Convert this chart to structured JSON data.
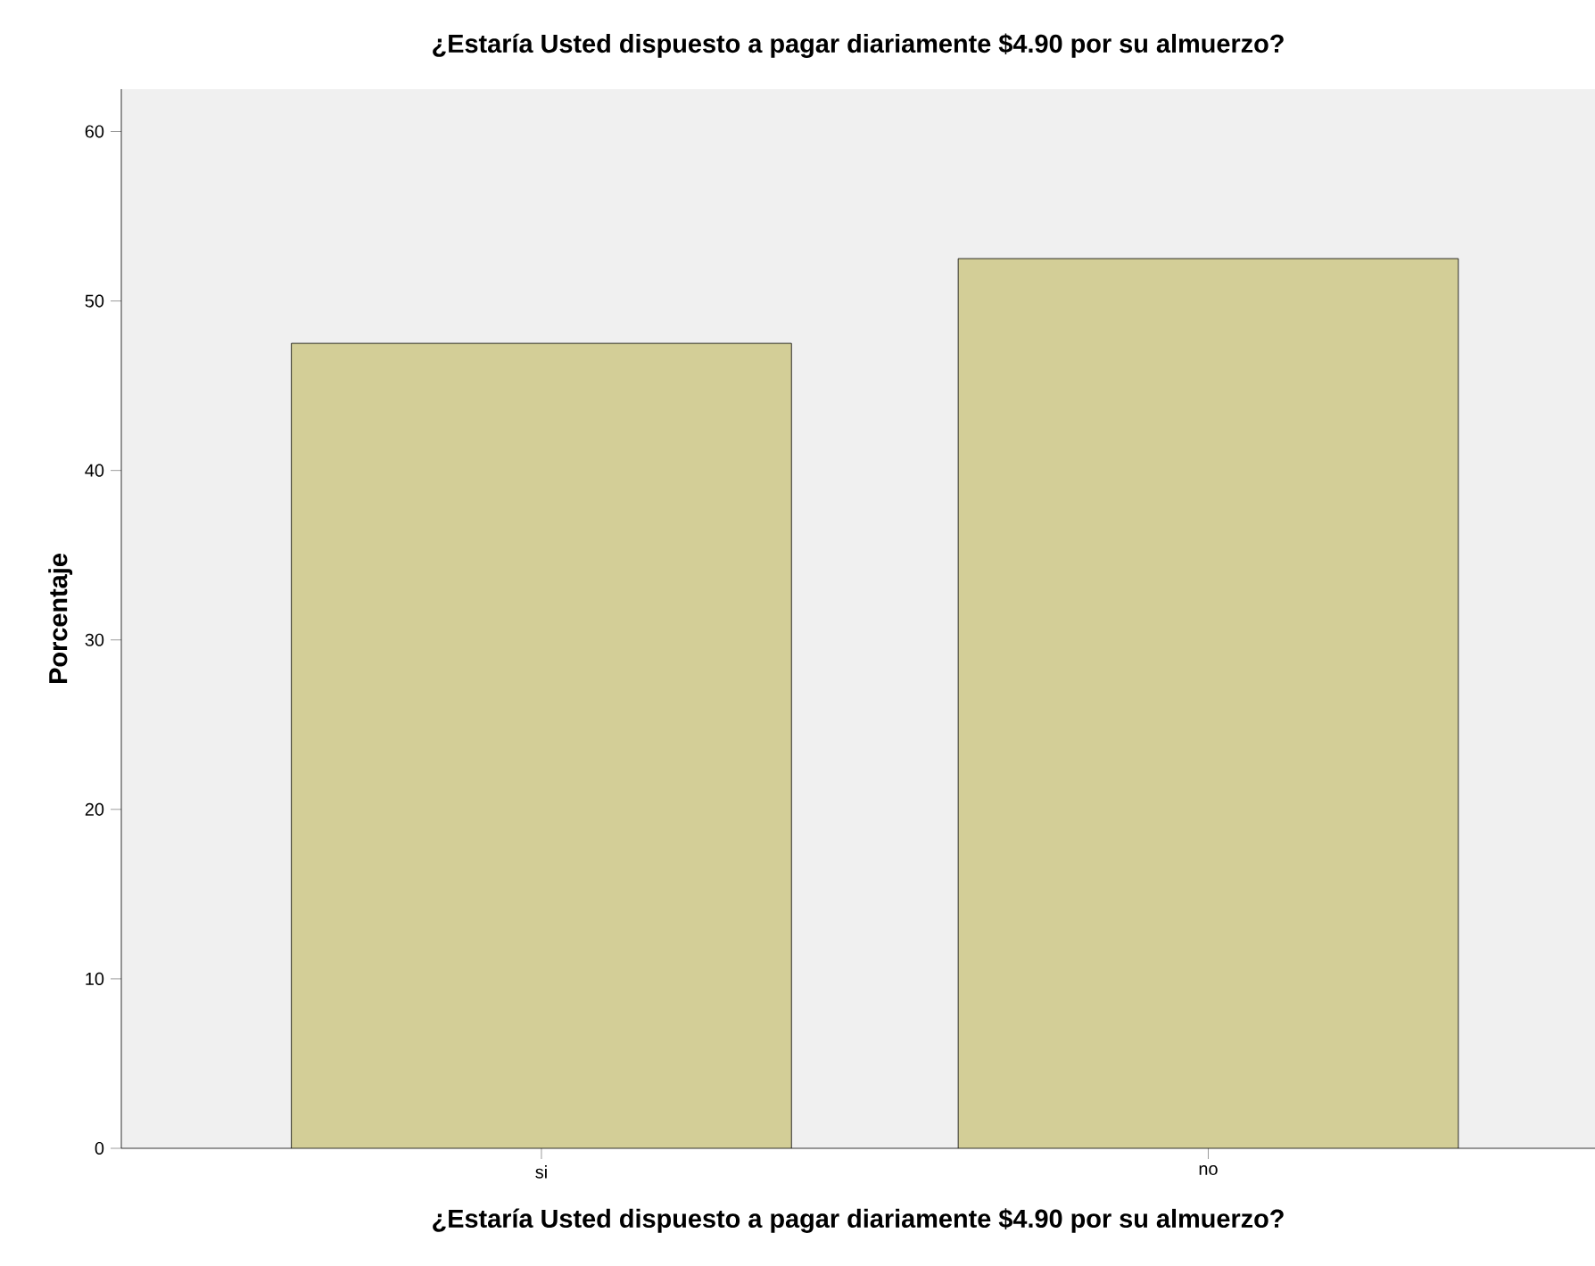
{
  "chart_data": {
    "type": "bar",
    "title": "¿Estaría Usted dispuesto a pagar diariamente $4.90 por su almuerzo?",
    "xlabel": "¿Estaría Usted dispuesto a pagar diariamente $4.90 por su almuerzo?",
    "ylabel": "Porcentaje",
    "categories": [
      "si",
      "no"
    ],
    "values": [
      47.5,
      52.5
    ],
    "color": "#d3ce97",
    "ylim": [
      0,
      62.5
    ],
    "yticks": [
      0,
      10,
      20,
      30,
      40,
      50,
      60
    ],
    "grid": false
  }
}
